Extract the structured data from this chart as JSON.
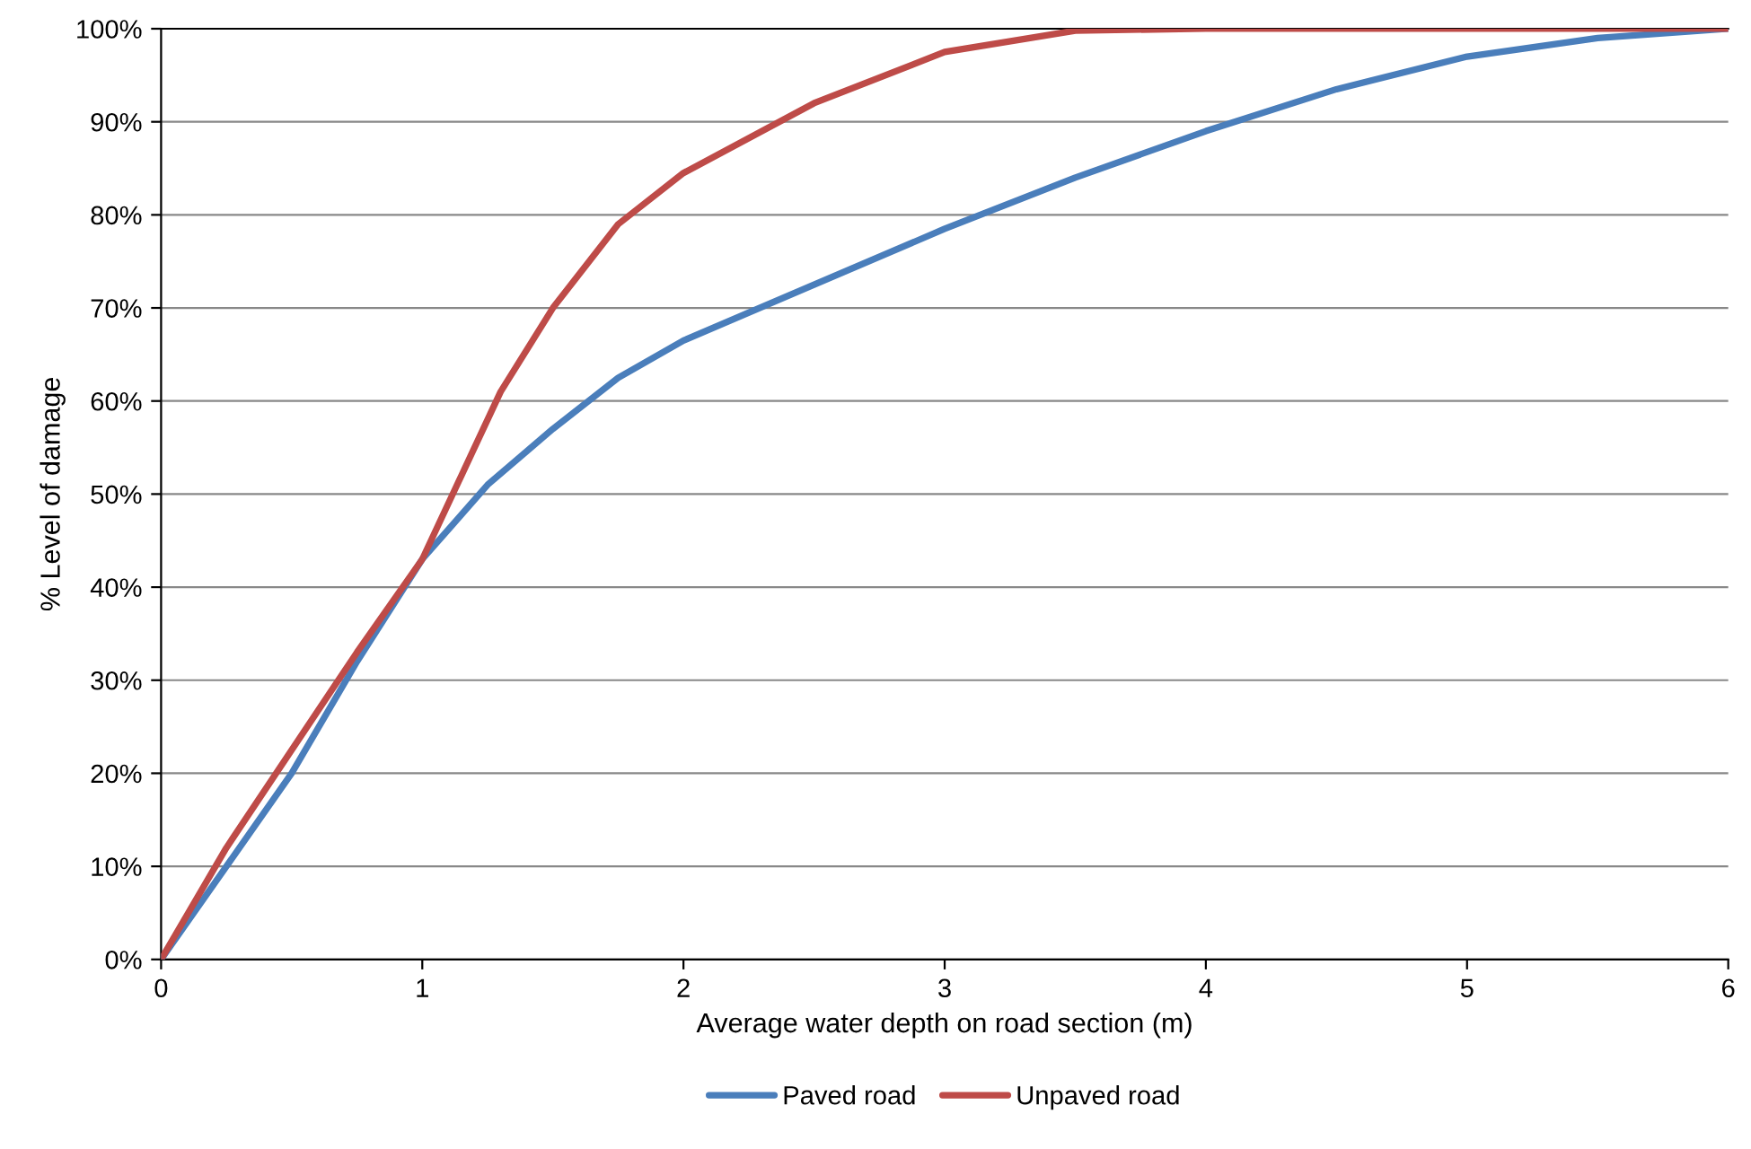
{
  "chart_data": {
    "type": "line",
    "xlabel": "Average water depth on road section (m)",
    "ylabel": "% Level of damage",
    "xlim": [
      0,
      6
    ],
    "xticks": [
      0,
      1,
      2,
      3,
      4,
      5,
      6
    ],
    "ylim": [
      0,
      100
    ],
    "yticks": [
      {
        "value": 0,
        "label": "0%"
      },
      {
        "value": 10,
        "label": "10%"
      },
      {
        "value": 20,
        "label": "20%"
      },
      {
        "value": 30,
        "label": "30%"
      },
      {
        "value": 40,
        "label": "40%"
      },
      {
        "value": 50,
        "label": "50%"
      },
      {
        "value": 60,
        "label": "60%"
      },
      {
        "value": 70,
        "label": "70%"
      },
      {
        "value": 80,
        "label": "80%"
      },
      {
        "value": 90,
        "label": "90%"
      },
      {
        "value": 100,
        "label": "100%"
      }
    ],
    "grid": "y",
    "legend": "bottom",
    "marker": "none",
    "line_style": "solid",
    "series": [
      {
        "name": "Paved road",
        "color": "#4a7ebb",
        "x": [
          0,
          0.25,
          0.5,
          0.75,
          1,
          1.25,
          1.5,
          1.75,
          2,
          2.5,
          3,
          3.5,
          4,
          4.5,
          5,
          5.5,
          6
        ],
        "values": [
          0,
          10,
          20,
          32,
          43,
          51,
          57,
          62.5,
          66.5,
          72.5,
          78.5,
          84,
          89,
          93.5,
          97,
          99,
          100
        ]
      },
      {
        "name": "Unpaved road",
        "color": "#be4b48",
        "x": [
          0,
          0.25,
          0.5,
          0.75,
          1,
          1.15,
          1.3,
          1.5,
          1.75,
          2,
          2.5,
          3,
          3.5,
          4,
          5,
          6
        ],
        "values": [
          0,
          12,
          22.5,
          33,
          43,
          52,
          61,
          70,
          79,
          84.5,
          92,
          97.5,
          99.8,
          100,
          100,
          100
        ]
      }
    ]
  }
}
